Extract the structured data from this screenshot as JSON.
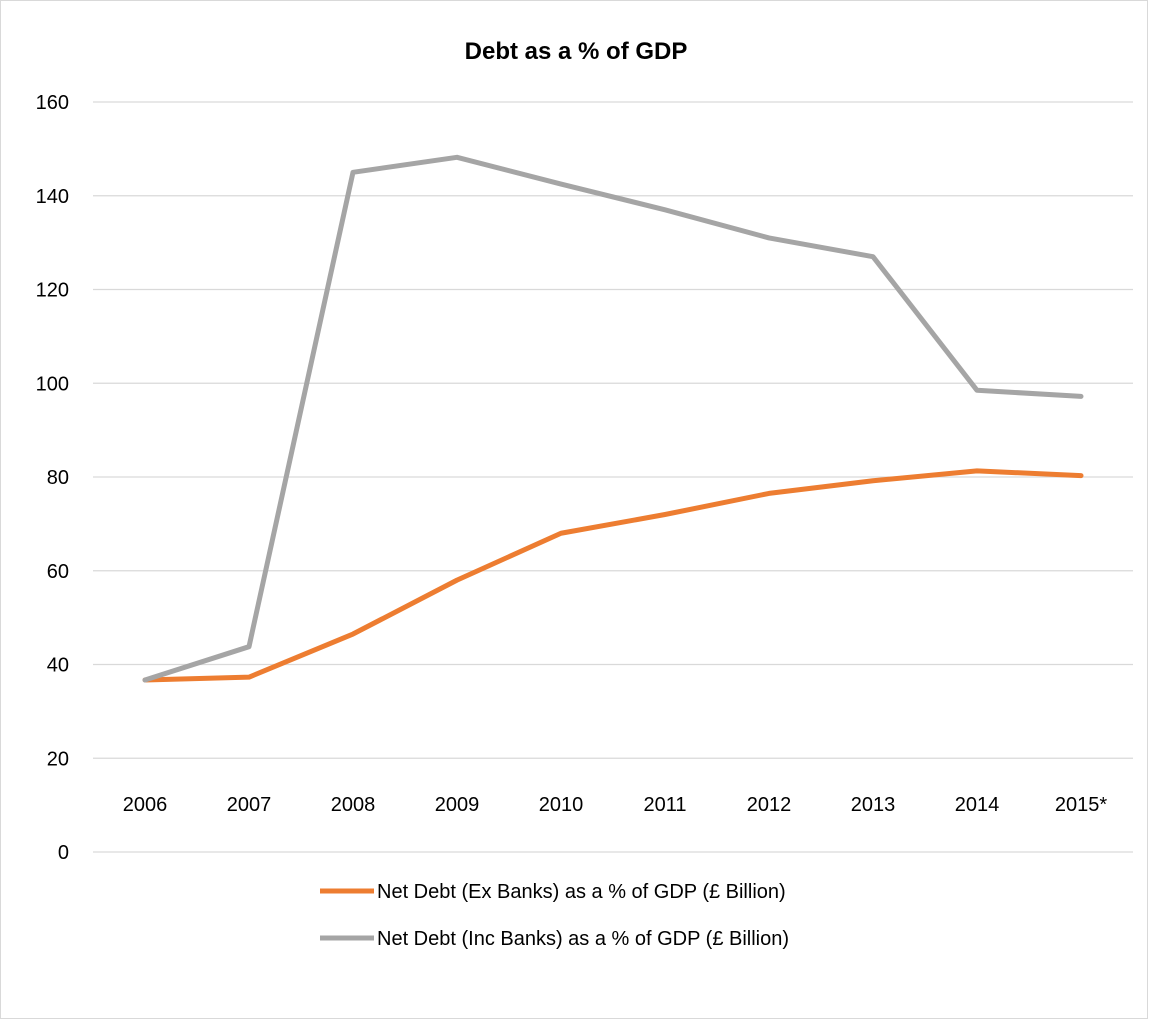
{
  "chart_data": {
    "type": "line",
    "title": "Debt as a % of GDP",
    "xlabel": "",
    "ylabel": "",
    "categories": [
      "2006",
      "2007",
      "2008",
      "2009",
      "2010",
      "2011",
      "2012",
      "2013",
      "2014",
      "2015*"
    ],
    "ylim": [
      0,
      160
    ],
    "yticks": [
      0,
      20,
      40,
      60,
      80,
      100,
      120,
      140,
      160
    ],
    "grid": true,
    "legend_position": "bottom",
    "series": [
      {
        "name": "Net Debt (Ex Banks) as a % of GDP (£ Billion)",
        "color": "#ed7d31",
        "values": [
          36.7,
          37.3,
          46.5,
          58,
          68,
          72,
          76.5,
          79.2,
          81.3,
          80.3
        ]
      },
      {
        "name": "Net Debt (Inc Banks) as a % of GDP (£ Billion)",
        "color": "#a5a5a5",
        "values": [
          36.7,
          43.8,
          145,
          148.2,
          142.5,
          137,
          131,
          127,
          98.5,
          97.2
        ]
      }
    ]
  }
}
